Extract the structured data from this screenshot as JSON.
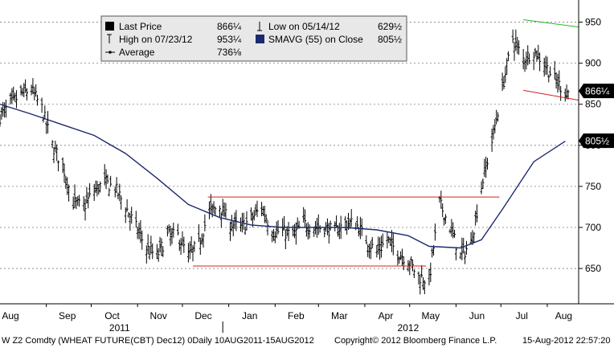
{
  "chart_data": {
    "type": "line",
    "subtype": "price bar chart (OHLC) with moving average",
    "background": "#ffffff",
    "colors": {
      "price_bars": "#000000",
      "moving_average": "#1c2a6e",
      "trend_top": "#d42020",
      "trend_bottom": "#d42020",
      "trend_down_top": "#2bb52b",
      "trend_down_bottom": "#d42020",
      "grid": "#7f7f7f",
      "label_box_bg": "#000000",
      "label_box_fg": "#ffffff",
      "legend_bg": "#e8e8e8"
    },
    "y_axis": {
      "side": "right",
      "range": [
        607,
        975
      ],
      "ticks": [
        650,
        700,
        750,
        800,
        850,
        900,
        950
      ],
      "tick_labels": [
        "650",
        "700",
        "750",
        "800",
        "850",
        "900",
        "950"
      ],
      "grid": true,
      "grid_style": "dashed"
    },
    "x_axis": {
      "range": [
        "2011-08-01",
        "2012-08-22"
      ],
      "month_labels": [
        {
          "label": "Aug",
          "date": "2011-08-08"
        },
        {
          "label": "Sep",
          "date": "2011-09-15"
        },
        {
          "label": "Oct",
          "date": "2011-10-15"
        },
        {
          "label": "Nov",
          "date": "2011-11-15"
        },
        {
          "label": "Dec",
          "date": "2011-12-15"
        },
        {
          "label": "Jan",
          "date": "2012-01-15"
        },
        {
          "label": "Feb",
          "date": "2012-02-15"
        },
        {
          "label": "Mar",
          "date": "2012-03-15"
        },
        {
          "label": "Apr",
          "date": "2012-04-15"
        },
        {
          "label": "May",
          "date": "2012-05-15"
        },
        {
          "label": "Jun",
          "date": "2012-06-15"
        },
        {
          "label": "Jul",
          "date": "2012-07-15"
        },
        {
          "label": "Aug",
          "date": "2012-08-12"
        }
      ],
      "year_labels": [
        {
          "label": "2011",
          "date": "2011-10-20"
        },
        {
          "label": "2012",
          "date": "2012-04-30"
        }
      ],
      "year_divider_date": "2011-12-28",
      "grid": false
    },
    "legend": {
      "placement": "top-left",
      "rows": [
        [
          {
            "marker": "filled-square",
            "label": "Last Price",
            "value": "866¼"
          },
          {
            "marker": "low-tick",
            "label": "Low on 05/14/12",
            "value": "629½"
          }
        ],
        [
          {
            "marker": "high-tick",
            "label": "High on 07/23/12",
            "value": "953¼"
          },
          {
            "marker": "navy-square",
            "label": "SMAVG (55) on Close",
            "value": "805½"
          }
        ],
        [
          {
            "marker": "line-dot",
            "label": "Average",
            "value": "736⅛"
          }
        ]
      ]
    },
    "value_labels": [
      {
        "text": "866¼",
        "value": 866.25
      },
      {
        "text": "805½",
        "value": 805.5
      }
    ],
    "series": [
      {
        "name": "Last Price",
        "kind": "price",
        "x": [
          "2011-08-01",
          "2011-08-08",
          "2011-08-15",
          "2011-08-22",
          "2011-08-29",
          "2011-09-05",
          "2011-09-12",
          "2011-09-19",
          "2011-09-26",
          "2011-10-03",
          "2011-10-10",
          "2011-10-17",
          "2011-10-24",
          "2011-10-31",
          "2011-11-07",
          "2011-11-14",
          "2011-11-21",
          "2011-11-28",
          "2011-12-05",
          "2011-12-12",
          "2011-12-19",
          "2011-12-26",
          "2012-01-02",
          "2012-01-09",
          "2012-01-16",
          "2012-01-23",
          "2012-01-30",
          "2012-02-06",
          "2012-02-13",
          "2012-02-20",
          "2012-02-27",
          "2012-03-05",
          "2012-03-12",
          "2012-03-19",
          "2012-03-26",
          "2012-04-02",
          "2012-04-09",
          "2012-04-16",
          "2012-04-23",
          "2012-04-30",
          "2012-05-07",
          "2012-05-14",
          "2012-05-21",
          "2012-05-28",
          "2012-06-04",
          "2012-06-11",
          "2012-06-18",
          "2012-06-25",
          "2012-07-02",
          "2012-07-09",
          "2012-07-16",
          "2012-07-23",
          "2012-07-30",
          "2012-08-06",
          "2012-08-13"
        ],
        "y": [
          835,
          850,
          862,
          868,
          845,
          800,
          775,
          730,
          725,
          745,
          755,
          748,
          725,
          700,
          675,
          665,
          690,
          690,
          665,
          680,
          720,
          725,
          705,
          700,
          710,
          725,
          695,
          695,
          690,
          705,
          700,
          700,
          695,
          705,
          705,
          685,
          670,
          685,
          670,
          660,
          640,
          635,
          730,
          700,
          665,
          680,
          750,
          805,
          870,
          930,
          905,
          915,
          900,
          880,
          866
        ]
      },
      {
        "name": "SMAVG (55) on Close",
        "kind": "moving_average",
        "x": [
          "2011-08-01",
          "2011-08-22",
          "2011-09-12",
          "2011-10-03",
          "2011-10-24",
          "2011-11-14",
          "2011-12-05",
          "2011-12-26",
          "2012-01-16",
          "2012-02-06",
          "2012-02-27",
          "2012-03-19",
          "2012-04-09",
          "2012-04-30",
          "2012-05-14",
          "2012-06-04",
          "2012-06-18",
          "2012-07-02",
          "2012-07-23",
          "2012-08-13"
        ],
        "y": [
          850,
          838,
          825,
          812,
          790,
          760,
          728,
          712,
          703,
          700,
          700,
          700,
          697,
          690,
          677,
          675,
          685,
          722,
          780,
          805
        ]
      },
      {
        "name": "",
        "kind": "trendline",
        "x": [
          "2011-12-18",
          "2012-06-30"
        ],
        "y": [
          737,
          737
        ]
      },
      {
        "name": "",
        "kind": "trendline",
        "x": [
          "2011-12-08",
          "2012-05-12"
        ],
        "y": [
          653,
          653
        ]
      },
      {
        "name": "",
        "kind": "trendline",
        "x": [
          "2012-07-16",
          "2012-08-22"
        ],
        "y": [
          953,
          944
        ]
      },
      {
        "name": "",
        "kind": "trendline",
        "x": [
          "2012-07-16",
          "2012-08-22"
        ],
        "y": [
          867,
          855
        ]
      }
    ]
  },
  "footer": {
    "left": "W Z2 Comdty (WHEAT FUTURE(CBT) Dec12) 0Daily 10AUG2011-15AUG2012",
    "center": "Copyright© 2012 Bloomberg Finance L.P.",
    "right": "15-Aug-2012 22:57:20"
  }
}
